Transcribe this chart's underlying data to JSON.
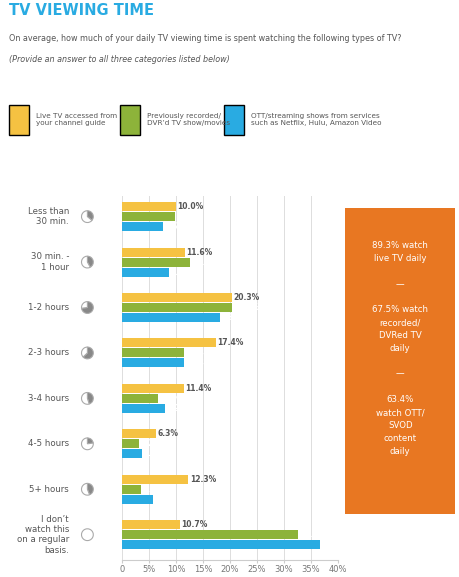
{
  "title": "TV VIEWING TIME",
  "subtitle_line1": "On average, how much of your daily TV viewing time is spent watching the following types of TV?",
  "subtitle_line2": "(Provide an answer to all three categories listed below)",
  "legend": [
    {
      "label": "Live TV accessed from\nyour channel guide",
      "color": "#F5C242"
    },
    {
      "label": "Previously recorded/\nDVR’d TV show/movies",
      "color": "#8DB33A"
    },
    {
      "label": "OTT/streaming shows from services\nsuch as Netflix, Hulu, Amazon Video",
      "color": "#29ABE2"
    }
  ],
  "categories": [
    "Less than\n30 min.",
    "30 min. -\n1 hour",
    "1-2 hours",
    "2-3 hours",
    "3-4 hours",
    "4-5 hours",
    "5+ hours",
    "I don’t\nwatch this\non a regular\nbasis."
  ],
  "live_tv": [
    10.0,
    11.6,
    20.3,
    17.4,
    11.4,
    6.3,
    12.3,
    10.7
  ],
  "recorded_tv": [
    9.8,
    12.6,
    20.3,
    11.4,
    6.7,
    3.2,
    3.6,
    32.5
  ],
  "ott_tv": [
    7.6,
    8.7,
    18.2,
    11.4,
    7.9,
    3.7,
    5.8,
    36.6
  ],
  "bar_colors": [
    "#F5C242",
    "#8DB33A",
    "#29ABE2"
  ],
  "annotation_color": "#E87722",
  "xlim": [
    0,
    40
  ],
  "xticks": [
    0,
    5,
    10,
    15,
    20,
    25,
    30,
    35,
    40
  ],
  "background_color": "#ffffff",
  "title_color": "#29ABE2",
  "pie_fracs": [
    0.36,
    0.42,
    0.73,
    0.63,
    0.45,
    0.23,
    0.44,
    0.0
  ]
}
